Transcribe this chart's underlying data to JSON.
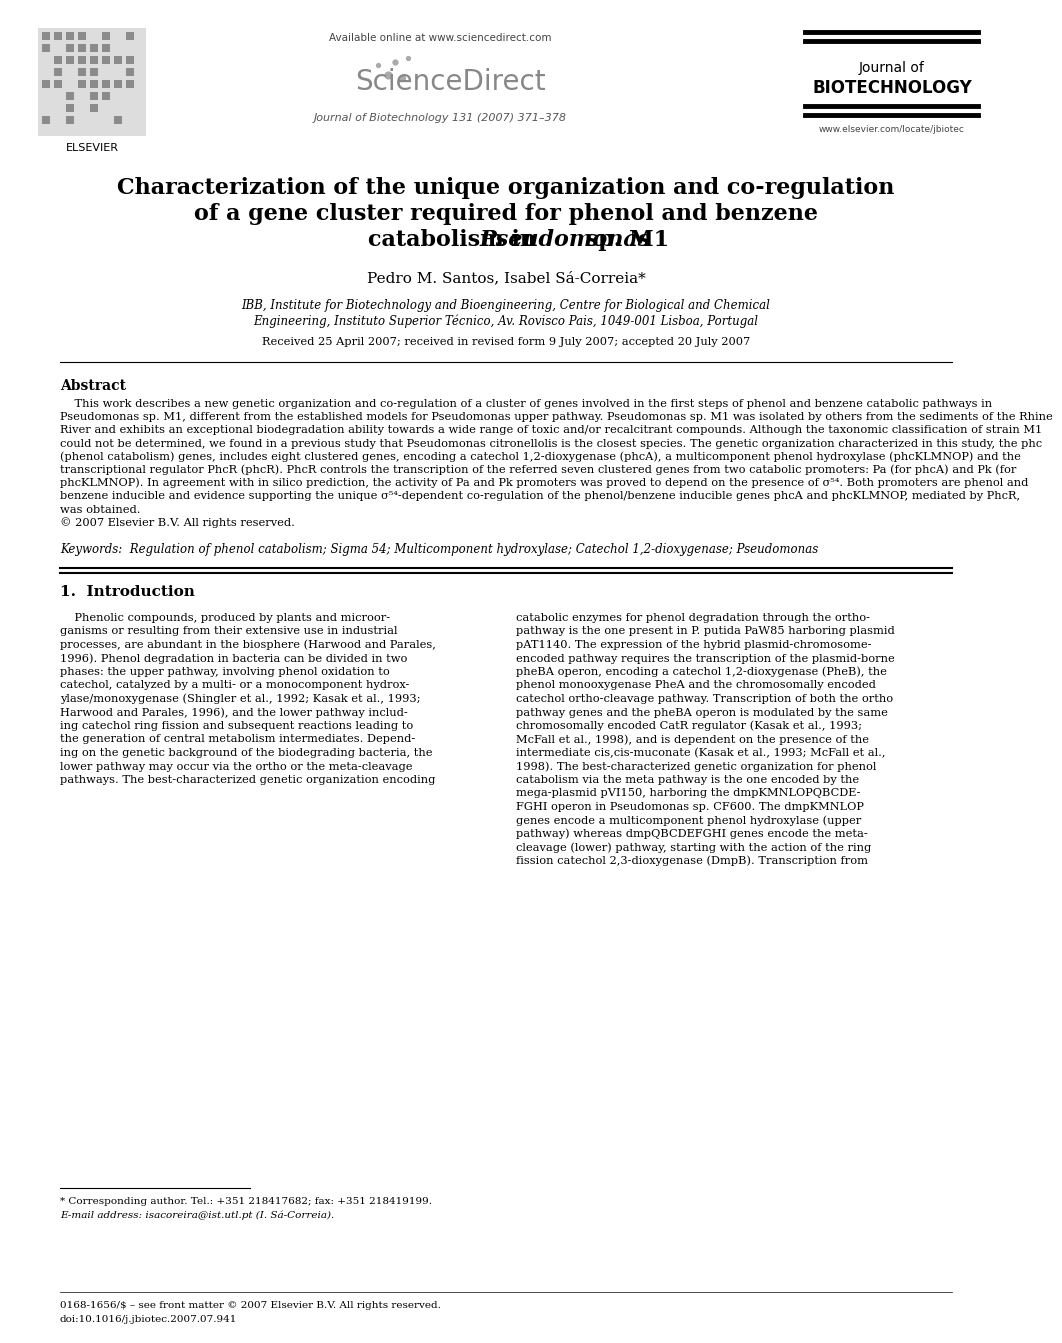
{
  "bg_color": "#ffffff",
  "available_online": "Available online at www.sciencedirect.com",
  "sciencedirect_text": "ScienceDirect",
  "journal_name_line1": "Journal of",
  "journal_name_line2": "BIOTECHNOLOGY",
  "journal_ref": "Journal of Biotechnology 131 (2007) 371–378",
  "elsevier_text": "ELSEVIER",
  "url": "www.elsevier.com/locate/jbiotec",
  "title_line1": "Characterization of the unique organization and co-regulation",
  "title_line2": "of a gene cluster required for phenol and benzene",
  "title_line3a": "catabolism in ",
  "title_line3b": "Pseudomonas",
  "title_line3c": " sp. M1",
  "authors": "Pedro M. Santos, Isabel Sá-Correia*",
  "affiliation_line1": "IBB, Institute for Biotechnology and Bioengineering, Centre for Biological and Chemical",
  "affiliation_line2": "Engineering, Instituto Superior Técnico, Av. Rovisco Pais, 1049-001 Lisboa, Portugal",
  "received": "Received 25 April 2007; received in revised form 9 July 2007; accepted 20 July 2007",
  "abstract_title": "Abstract",
  "abstract_lines": [
    "    This work describes a new genetic organization and co-regulation of a cluster of genes involved in the first steps of phenol and benzene catabolic pathways in",
    "Pseudomonas sp. M1, different from the established models for Pseudomonas upper pathway. Pseudomonas sp. M1 was isolated by others from the sediments of the Rhine",
    "River and exhibits an exceptional biodegradation ability towards a wide range of toxic and/or recalcitrant compounds. Although the taxonomic classification of strain M1",
    "could not be determined, we found in a previous study that Pseudomonas citronellolis is the closest species. The genetic organization characterized in this study, the phc",
    "(phenol catabolism) genes, includes eight clustered genes, encoding a catechol 1,2-dioxygenase (phcA), a multicomponent phenol hydroxylase (phcKLMNOP) and the",
    "transcriptional regulator PhcR (phcR). PhcR controls the transcription of the referred seven clustered genes from two catabolic promoters: Pa (for phcA) and Pk (for",
    "phcKLMNOP). In agreement with in silico prediction, the activity of Pa and Pk promoters was proved to depend on the presence of σ⁵⁴. Both promoters are phenol and",
    "benzene inducible and evidence supporting the unique σ⁵⁴-dependent co-regulation of the phenol/benzene inducible genes phcA and phcKLMNOP, mediated by PhcR,",
    "was obtained.",
    "© 2007 Elsevier B.V. All rights reserved."
  ],
  "keywords": "Keywords:  Regulation of phenol catabolism; Sigma 54; Multicomponent hydroxylase; Catechol 1,2-dioxygenase; Pseudomonas",
  "section1_title": "1.  Introduction",
  "intro_left_lines": [
    "    Phenolic compounds, produced by plants and microor-",
    "ganisms or resulting from their extensive use in industrial",
    "processes, are abundant in the biosphere (Harwood and Parales,",
    "1996). Phenol degradation in bacteria can be divided in two",
    "phases: the upper pathway, involving phenol oxidation to",
    "catechol, catalyzed by a multi- or a monocomponent hydrox-",
    "ylase/monoxygenase (Shingler et al., 1992; Kasak et al., 1993;",
    "Harwood and Parales, 1996), and the lower pathway includ-",
    "ing catechol ring fission and subsequent reactions leading to",
    "the generation of central metabolism intermediates. Depend-",
    "ing on the genetic background of the biodegrading bacteria, the",
    "lower pathway may occur via the ortho or the meta-cleavage",
    "pathways. The best-characterized genetic organization encoding"
  ],
  "intro_right_lines": [
    "catabolic enzymes for phenol degradation through the ortho-",
    "pathway is the one present in P. putida PaW85 harboring plasmid",
    "pAT1140. The expression of the hybrid plasmid-chromosome-",
    "encoded pathway requires the transcription of the plasmid-borne",
    "pheBA operon, encoding a catechol 1,2-dioxygenase (PheB), the",
    "phenol monooxygenase PheA and the chromosomally encoded",
    "catechol ortho-cleavage pathway. Transcription of both the ortho",
    "pathway genes and the pheBA operon is modulated by the same",
    "chromosomally encoded CatR regulator (Kasak et al., 1993;",
    "McFall et al., 1998), and is dependent on the presence of the",
    "intermediate cis,cis-muconate (Kasak et al., 1993; McFall et al.,",
    "1998). The best-characterized genetic organization for phenol",
    "catabolism via the meta pathway is the one encoded by the",
    "mega-plasmid pVI150, harboring the dmpKMNLOPQBCDE-",
    "FGHI operon in Pseudomonas sp. CF600. The dmpKMNLOP",
    "genes encode a multicomponent phenol hydroxylase (upper",
    "pathway) whereas dmpQBCDEFGHI genes encode the meta-",
    "cleavage (lower) pathway, starting with the action of the ring",
    "fission catechol 2,3-dioxygenase (DmpB). Transcription from"
  ],
  "footnote_star": "* Corresponding author. Tel.: +351 218417682; fax: +351 218419199.",
  "footnote_email": "E-mail address: isacoreira@ist.utl.pt (I. Sá-Correia).",
  "footer_issn": "0168-1656/$ – see front matter © 2007 Elsevier B.V. All rights reserved.",
  "footer_doi": "doi:10.1016/j.jbiotec.2007.07.941"
}
